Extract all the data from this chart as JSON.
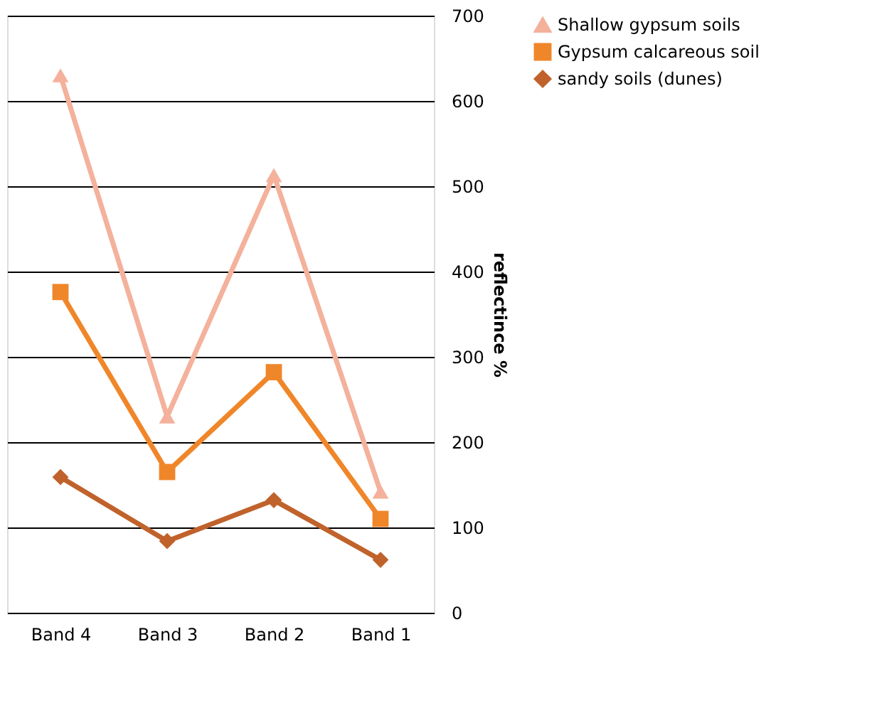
{
  "chart_data": {
    "type": "line",
    "ylabel": "reflectince %",
    "categories": [
      "Band 4",
      "Band 3",
      "Band 2",
      "Band 1"
    ],
    "series": [
      {
        "name": "Shallow gypsum soils",
        "color": "#f4b19b",
        "marker": "triangle",
        "values": [
          630,
          230,
          513,
          142
        ]
      },
      {
        "name": "Gypsum calcareous soil",
        "color": "#f0862a",
        "marker": "square",
        "values": [
          376,
          165,
          282,
          110
        ]
      },
      {
        "name": "sandy soils (dunes)",
        "color": "#c0622b",
        "marker": "diamond",
        "values": [
          159,
          84,
          132,
          62
        ]
      }
    ],
    "ylim": [
      0,
      700
    ],
    "yticks": [
      0,
      100,
      200,
      300,
      400,
      500,
      600,
      700
    ],
    "grid": "y",
    "legend": "right",
    "line_style": "solid"
  }
}
